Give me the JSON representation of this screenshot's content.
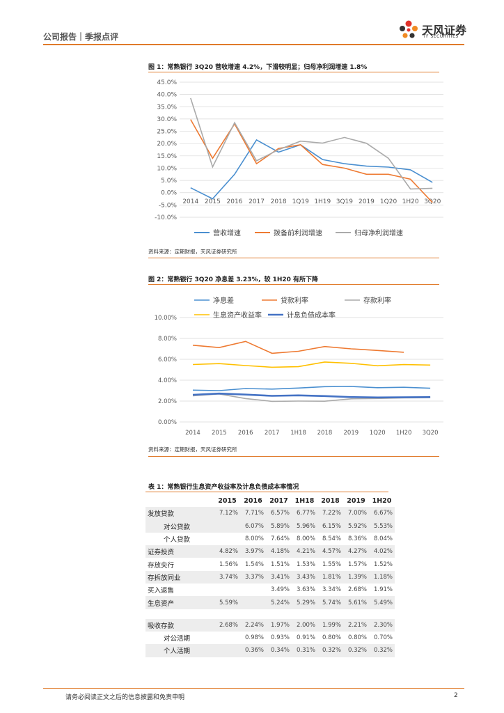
{
  "header": {
    "left": "公司报告｜季报点评",
    "brand_cn": "天风证券",
    "brand_en": "TF SECURITIES"
  },
  "figure1": {
    "title": "图 1：常熟银行 3Q20 营收增速 4.2%，下滑较明显；归母净利润增速 1.8%",
    "source": "资料来源：定期财报，天风证券研究所",
    "chart_data": {
      "type": "line",
      "categories": [
        "2014",
        "2015",
        "2016",
        "2017",
        "2018",
        "1Q19",
        "1H19",
        "3Q19",
        "2019",
        "1Q20",
        "1H20",
        "3Q20"
      ],
      "ylim": [
        -10,
        45
      ],
      "yticks": [
        "45.0%",
        "40.0%",
        "35.0%",
        "30.0%",
        "25.0%",
        "20.0%",
        "15.0%",
        "10.0%",
        "5.0%",
        "0.0%",
        "-5.0%",
        "-10.0%"
      ],
      "grid": true,
      "legend": "bottom",
      "series": [
        {
          "name": "营收增速",
          "color": "#4a8fd0",
          "values": [
            2.0,
            -2.5,
            7.5,
            21.5,
            16.5,
            19.5,
            13.5,
            11.8,
            10.8,
            10.4,
            9.3,
            4.2
          ]
        },
        {
          "name": "拨备前利润增速",
          "color": "#ee7a32",
          "values": [
            29.8,
            14.0,
            28.0,
            11.8,
            18.0,
            19.5,
            11.5,
            10.0,
            7.5,
            7.5,
            5.5,
            -4.0
          ]
        },
        {
          "name": "归母净利润增速",
          "color": "#aaaaaa",
          "values": [
            38.5,
            10.5,
            28.5,
            13.0,
            17.5,
            21.0,
            20.2,
            22.5,
            20.1,
            14.0,
            1.5,
            1.8
          ]
        }
      ]
    }
  },
  "figure2": {
    "title": "图 2：常熟银行 3Q20 净息差 3.23%，较 1H20 有所下降",
    "source": "资料来源：定期财报，天风证券研究所",
    "chart_data": {
      "type": "line",
      "categories": [
        "2014",
        "2015",
        "2016",
        "2017",
        "1H18",
        "2018",
        "2019",
        "1Q20",
        "1H20",
        "3Q20"
      ],
      "ylim": [
        0,
        10
      ],
      "yticks": [
        "10.00%",
        "8.00%",
        "6.00%",
        "4.00%",
        "2.00%",
        "0.00%"
      ],
      "grid": true,
      "legend": "top",
      "series": [
        {
          "name": "净息差",
          "color": "#4a8fd0",
          "values": [
            3.05,
            3.0,
            3.2,
            3.15,
            3.25,
            3.38,
            3.4,
            3.28,
            3.32,
            3.23
          ]
        },
        {
          "name": "贷款利率",
          "color": "#ee7a32",
          "values": [
            7.35,
            7.12,
            7.71,
            6.57,
            6.77,
            7.22,
            7.0,
            6.85,
            6.67,
            null
          ]
        },
        {
          "name": "存款利率",
          "color": "#aaaaaa",
          "values": [
            2.5,
            2.68,
            2.24,
            1.97,
            2.0,
            1.99,
            2.21,
            2.25,
            2.3,
            2.32
          ]
        },
        {
          "name": "生息资产收益率",
          "color": "#ffc000",
          "values": [
            5.5,
            5.59,
            5.4,
            5.24,
            5.29,
            5.74,
            5.61,
            5.38,
            5.49,
            5.45
          ]
        },
        {
          "name": "计息负债成本率",
          "color": "#4472c4",
          "values": [
            2.6,
            2.72,
            2.62,
            2.5,
            2.55,
            2.48,
            2.38,
            2.35,
            2.36,
            2.38
          ]
        }
      ]
    }
  },
  "table1": {
    "title": "表 1：常熟银行生息资产收益率及计息负债成本率情况",
    "headers": [
      "2015",
      "2016",
      "2017",
      "1H18",
      "2018",
      "2019",
      "1H20"
    ],
    "rows": [
      {
        "label": "发放贷款",
        "values": [
          "7.12%",
          "7.71%",
          "6.57%",
          "6.77%",
          "7.22%",
          "7.00%",
          "6.67%"
        ]
      },
      {
        "label": "对公贷款",
        "values": [
          "",
          "6.07%",
          "5.89%",
          "5.96%",
          "6.15%",
          "5.92%",
          "5.53%"
        ]
      },
      {
        "label": "个人贷款",
        "values": [
          "",
          "8.00%",
          "7.64%",
          "8.00%",
          "8.54%",
          "8.36%",
          "8.04%"
        ]
      },
      {
        "label": "证券投资",
        "values": [
          "4.82%",
          "3.97%",
          "4.18%",
          "4.21%",
          "4.57%",
          "4.27%",
          "4.02%"
        ]
      },
      {
        "label": "存放央行",
        "values": [
          "1.56%",
          "1.54%",
          "1.51%",
          "1.53%",
          "1.55%",
          "1.57%",
          "1.52%"
        ]
      },
      {
        "label": "存拆放同业",
        "values": [
          "3.74%",
          "3.37%",
          "3.41%",
          "3.43%",
          "1.81%",
          "1.39%",
          "1.18%"
        ]
      },
      {
        "label": "买入返售",
        "values": [
          "",
          "",
          "3.49%",
          "3.63%",
          "3.34%",
          "2.68%",
          "1.91%"
        ]
      },
      {
        "label": "生息资产",
        "values": [
          "5.59%",
          "",
          "5.24%",
          "5.29%",
          "5.74%",
          "5.61%",
          "5.49%"
        ]
      },
      {
        "label": "吸收存款",
        "values": [
          "2.68%",
          "2.24%",
          "1.97%",
          "2.00%",
          "1.99%",
          "2.21%",
          "2.30%"
        ]
      },
      {
        "label": "对公活期",
        "values": [
          "",
          "0.98%",
          "0.93%",
          "0.91%",
          "0.80%",
          "0.80%",
          "0.70%"
        ]
      },
      {
        "label": "个人活期",
        "values": [
          "",
          "0.36%",
          "0.34%",
          "0.31%",
          "0.32%",
          "0.32%",
          "0.32%"
        ]
      }
    ]
  },
  "footer": {
    "disclaimer": "请务必阅读正文之后的信息披露和免责申明",
    "page": "2"
  }
}
